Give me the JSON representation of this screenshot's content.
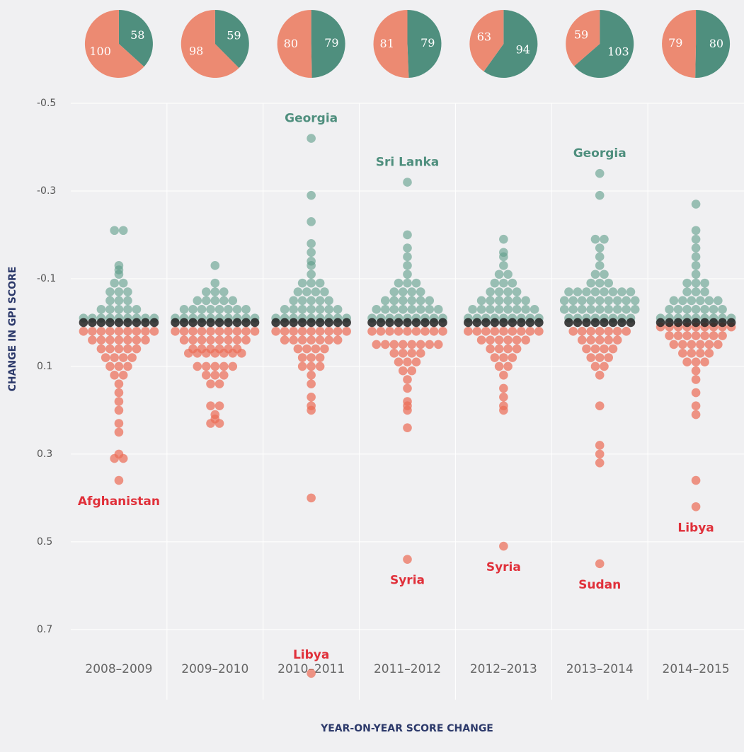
{
  "chart_data": {
    "type": "beeswarm",
    "x_label": "YEAR-ON-YEAR SCORE CHANGE",
    "y_label": "CHANGE IN GPI SCORE",
    "categories": [
      "2008–2009",
      "2009–2010",
      "2010–2011",
      "2011–2012",
      "2012–2013",
      "2013–2014",
      "2014–2015"
    ],
    "ylim": [
      -0.5,
      0.86
    ],
    "y_inverted": true,
    "yticks": [
      -0.5,
      -0.3,
      -0.1,
      0.1,
      0.3,
      0.5,
      0.7
    ],
    "grid": true,
    "colors": {
      "improved": "#5e9c89",
      "deteriorated": "#ec6d58",
      "unchanged": "#222222",
      "pie_improved": "#4f8f7e",
      "pie_deteriorated": "#ec8a72"
    },
    "pies": [
      [
        100,
        58
      ],
      [
        98,
        59
      ],
      [
        80,
        79
      ],
      [
        81,
        79
      ],
      [
        63,
        94
      ],
      [
        59,
        103
      ],
      [
        79,
        80
      ]
    ],
    "top_labels": [
      null,
      null,
      "Georgia",
      "Sri Lanka",
      null,
      "Georgia",
      null
    ],
    "bottom_labels": [
      "Afghanistan",
      null,
      "Libya",
      "Syria",
      "Syria",
      "Sudan",
      "Libya"
    ],
    "values": [
      [
        0,
        0,
        0,
        0,
        0,
        0,
        0,
        0,
        0,
        -0.01,
        -0.01,
        -0.01,
        -0.01,
        -0.01,
        -0.01,
        -0.01,
        -0.01,
        -0.01,
        -0.03,
        -0.03,
        -0.03,
        -0.03,
        -0.03,
        -0.05,
        -0.05,
        -0.05,
        -0.07,
        -0.07,
        -0.07,
        -0.09,
        -0.09,
        -0.11,
        -0.12,
        -0.13,
        -0.21,
        -0.21,
        0.02,
        0.02,
        0.02,
        0.02,
        0.02,
        0.02,
        0.02,
        0.02,
        0.02,
        0.04,
        0.04,
        0.04,
        0.04,
        0.04,
        0.04,
        0.04,
        0.06,
        0.06,
        0.06,
        0.06,
        0.06,
        0.08,
        0.08,
        0.08,
        0.08,
        0.1,
        0.1,
        0.1,
        0.12,
        0.12,
        0.14,
        0.16,
        0.18,
        0.2,
        0.23,
        0.25,
        0.3,
        0.31,
        0.31,
        0.36
      ],
      [
        0,
        0,
        0,
        0,
        0,
        0,
        0,
        0,
        0,
        0,
        -0.01,
        -0.01,
        -0.01,
        -0.01,
        -0.01,
        -0.01,
        -0.01,
        -0.01,
        -0.01,
        -0.01,
        -0.03,
        -0.03,
        -0.03,
        -0.03,
        -0.03,
        -0.03,
        -0.03,
        -0.03,
        -0.05,
        -0.05,
        -0.05,
        -0.05,
        -0.05,
        -0.07,
        -0.07,
        -0.07,
        -0.09,
        -0.13,
        0.02,
        0.02,
        0.02,
        0.02,
        0.02,
        0.02,
        0.02,
        0.02,
        0.02,
        0.02,
        0.04,
        0.04,
        0.04,
        0.04,
        0.04,
        0.04,
        0.04,
        0.04,
        0.06,
        0.06,
        0.06,
        0.06,
        0.06,
        0.06,
        0.07,
        0.07,
        0.07,
        0.07,
        0.07,
        0.07,
        0.07,
        0.1,
        0.1,
        0.1,
        0.1,
        0.1,
        0.12,
        0.12,
        0.12,
        0.14,
        0.14,
        0.19,
        0.19,
        0.21,
        0.22,
        0.23,
        0.23
      ],
      [
        0,
        0,
        0,
        0,
        0,
        0,
        0,
        0,
        0,
        -0.01,
        -0.01,
        -0.01,
        -0.01,
        -0.01,
        -0.01,
        -0.01,
        -0.01,
        -0.01,
        -0.03,
        -0.03,
        -0.03,
        -0.03,
        -0.03,
        -0.03,
        -0.03,
        -0.05,
        -0.05,
        -0.05,
        -0.05,
        -0.05,
        -0.07,
        -0.07,
        -0.07,
        -0.07,
        -0.09,
        -0.09,
        -0.09,
        -0.11,
        -0.13,
        -0.14,
        -0.16,
        -0.18,
        -0.23,
        -0.29,
        -0.42,
        0.02,
        0.02,
        0.02,
        0.02,
        0.02,
        0.02,
        0.02,
        0.02,
        0.02,
        0.04,
        0.04,
        0.04,
        0.04,
        0.04,
        0.04,
        0.04,
        0.06,
        0.06,
        0.06,
        0.06,
        0.08,
        0.08,
        0.08,
        0.1,
        0.1,
        0.1,
        0.12,
        0.14,
        0.17,
        0.19,
        0.2,
        0.4,
        0.8
      ],
      [
        0,
        0,
        0,
        0,
        0,
        0,
        0,
        0,
        0,
        -0.01,
        -0.01,
        -0.01,
        -0.01,
        -0.01,
        -0.01,
        -0.01,
        -0.01,
        -0.01,
        -0.03,
        -0.03,
        -0.03,
        -0.03,
        -0.03,
        -0.03,
        -0.03,
        -0.03,
        -0.05,
        -0.05,
        -0.05,
        -0.05,
        -0.05,
        -0.05,
        -0.07,
        -0.07,
        -0.07,
        -0.07,
        -0.09,
        -0.09,
        -0.09,
        -0.11,
        -0.13,
        -0.15,
        -0.17,
        -0.2,
        -0.32,
        0.02,
        0.02,
        0.02,
        0.02,
        0.02,
        0.02,
        0.02,
        0.02,
        0.02,
        0.05,
        0.05,
        0.05,
        0.05,
        0.05,
        0.05,
        0.05,
        0.05,
        0.07,
        0.07,
        0.07,
        0.07,
        0.09,
        0.09,
        0.09,
        0.11,
        0.11,
        0.13,
        0.15,
        0.18,
        0.19,
        0.2,
        0.24,
        0.54
      ],
      [
        0,
        0,
        0,
        0,
        0,
        0,
        0,
        0,
        0,
        -0.01,
        -0.01,
        -0.01,
        -0.01,
        -0.01,
        -0.01,
        -0.01,
        -0.01,
        -0.01,
        -0.03,
        -0.03,
        -0.03,
        -0.03,
        -0.03,
        -0.03,
        -0.03,
        -0.03,
        -0.05,
        -0.05,
        -0.05,
        -0.05,
        -0.05,
        -0.05,
        -0.07,
        -0.07,
        -0.07,
        -0.07,
        -0.09,
        -0.09,
        -0.09,
        -0.11,
        -0.11,
        -0.13,
        -0.15,
        -0.16,
        -0.19,
        0.02,
        0.02,
        0.02,
        0.02,
        0.02,
        0.02,
        0.02,
        0.02,
        0.02,
        0.04,
        0.04,
        0.04,
        0.04,
        0.04,
        0.04,
        0.06,
        0.06,
        0.06,
        0.06,
        0.08,
        0.08,
        0.08,
        0.1,
        0.1,
        0.12,
        0.15,
        0.17,
        0.19,
        0.2,
        0.51
      ],
      [
        0,
        0,
        0,
        0,
        0,
        0,
        0,
        0,
        -0.01,
        -0.01,
        -0.01,
        -0.01,
        -0.01,
        -0.01,
        -0.01,
        -0.01,
        -0.03,
        -0.03,
        -0.03,
        -0.03,
        -0.03,
        -0.03,
        -0.03,
        -0.03,
        -0.03,
        -0.05,
        -0.05,
        -0.05,
        -0.05,
        -0.05,
        -0.05,
        -0.05,
        -0.05,
        -0.05,
        -0.07,
        -0.07,
        -0.07,
        -0.07,
        -0.07,
        -0.07,
        -0.07,
        -0.07,
        -0.09,
        -0.09,
        -0.09,
        -0.11,
        -0.11,
        -0.13,
        -0.15,
        -0.17,
        -0.19,
        -0.19,
        -0.29,
        -0.34,
        0.02,
        0.02,
        0.02,
        0.02,
        0.02,
        0.02,
        0.02,
        0.04,
        0.04,
        0.04,
        0.04,
        0.04,
        0.06,
        0.06,
        0.06,
        0.06,
        0.08,
        0.08,
        0.08,
        0.1,
        0.1,
        0.12,
        0.19,
        0.28,
        0.3,
        0.32,
        0.55
      ],
      [
        0,
        0,
        0,
        0,
        0,
        0,
        0,
        0,
        0,
        -0.01,
        -0.01,
        -0.01,
        -0.01,
        -0.01,
        -0.01,
        -0.01,
        -0.01,
        -0.01,
        -0.03,
        -0.03,
        -0.03,
        -0.03,
        -0.03,
        -0.03,
        -0.03,
        -0.05,
        -0.05,
        -0.05,
        -0.05,
        -0.05,
        -0.05,
        -0.07,
        -0.07,
        -0.07,
        -0.09,
        -0.09,
        -0.09,
        -0.11,
        -0.13,
        -0.15,
        -0.17,
        -0.19,
        -0.21,
        -0.27,
        0.01,
        0.01,
        0.01,
        0.01,
        0.01,
        0.01,
        0.01,
        0.01,
        0.01,
        0.03,
        0.03,
        0.03,
        0.03,
        0.03,
        0.03,
        0.03,
        0.05,
        0.05,
        0.05,
        0.05,
        0.05,
        0.05,
        0.07,
        0.07,
        0.07,
        0.07,
        0.09,
        0.09,
        0.09,
        0.11,
        0.13,
        0.16,
        0.19,
        0.21,
        0.36,
        0.42
      ]
    ]
  }
}
